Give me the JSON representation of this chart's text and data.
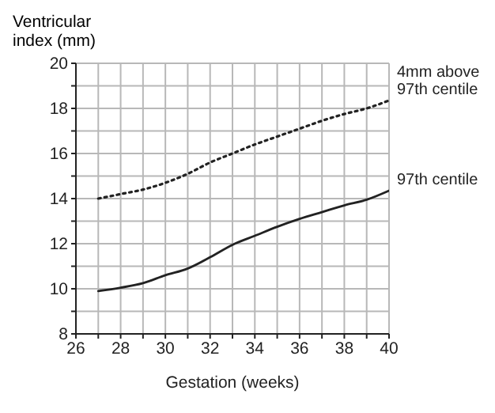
{
  "chart_data": {
    "type": "line",
    "ylabel": "Ventricular index (mm)",
    "xlabel": "Gestation (weeks)",
    "x": [
      27,
      28,
      29,
      30,
      31,
      32,
      33,
      34,
      35,
      36,
      37,
      38,
      39,
      40
    ],
    "series": [
      {
        "name": "4mm above 97th centile",
        "color": "#222222",
        "line_style": "dotted",
        "values": [
          14.0,
          14.2,
          14.4,
          14.7,
          15.1,
          15.6,
          16.0,
          16.4,
          16.75,
          17.1,
          17.45,
          17.75,
          18.0,
          18.35
        ]
      },
      {
        "name": "97th centile",
        "color": "#222222",
        "line_style": "solid",
        "values": [
          9.9,
          10.05,
          10.25,
          10.6,
          10.9,
          11.4,
          11.95,
          12.35,
          12.75,
          13.1,
          13.4,
          13.7,
          13.95,
          14.35
        ]
      }
    ],
    "xlim": [
      26,
      40
    ],
    "xticks": [
      26,
      {
        "value": 27,
        "label": null
      },
      28,
      {
        "value": 29,
        "label": null
      },
      30,
      {
        "value": 31,
        "label": null
      },
      32,
      {
        "value": 33,
        "label": null
      },
      34,
      {
        "value": 35,
        "label": null
      },
      36,
      {
        "value": 37,
        "label": null
      },
      38,
      {
        "value": 39,
        "label": null
      },
      40
    ],
    "ylim": [
      8,
      20
    ],
    "yticks": [
      8,
      {
        "value": 9,
        "label": null
      },
      10,
      {
        "value": 11,
        "label": null
      },
      12,
      {
        "value": 13,
        "label": null
      },
      14,
      {
        "value": 15,
        "label": null
      },
      16,
      {
        "value": 17,
        "label": null
      },
      18,
      {
        "value": 19,
        "label": null
      },
      20
    ],
    "grid": true,
    "legend": false,
    "marker": "none"
  }
}
